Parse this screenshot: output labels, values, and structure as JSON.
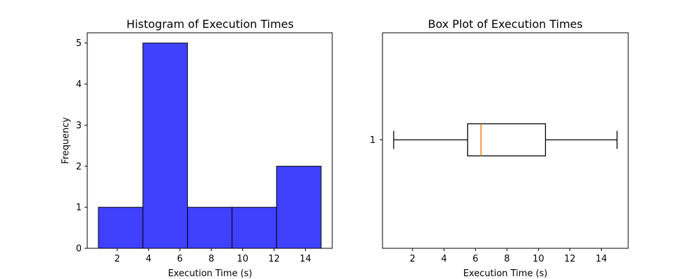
{
  "chart_data": [
    {
      "type": "bar",
      "subtype": "histogram",
      "title": "Histogram of Execution Times",
      "xlabel": "Execution Time (s)",
      "ylabel": "Frequency",
      "bin_edges": [
        0.8,
        3.64,
        6.48,
        9.32,
        12.16,
        15.0
      ],
      "values": [
        1,
        5,
        1,
        1,
        2
      ],
      "xlim": [
        0.09,
        15.71
      ],
      "ylim": [
        0,
        5.25
      ],
      "x_ticks": [
        "2",
        "4",
        "6",
        "8",
        "10",
        "12",
        "14"
      ],
      "y_ticks": [
        "0",
        "1",
        "2",
        "3",
        "4",
        "5"
      ],
      "bar_color": "#4040ff",
      "edge_color": "#000000",
      "grid": false
    },
    {
      "type": "box",
      "orientation": "horizontal",
      "title": "Box Plot of Execution Times",
      "xlabel": "Execution Time (s)",
      "category_labels": [
        "1"
      ],
      "stats": {
        "whisker_low": 0.8,
        "q1": 5.5,
        "median": 6.35,
        "q3": 10.45,
        "whisker_high": 15.0
      },
      "xlim": [
        0.09,
        15.71
      ],
      "x_ticks": [
        "2",
        "4",
        "6",
        "8",
        "10",
        "12",
        "14"
      ],
      "median_color": "#ff7f0e",
      "line_color": "#000000",
      "grid": false
    }
  ]
}
